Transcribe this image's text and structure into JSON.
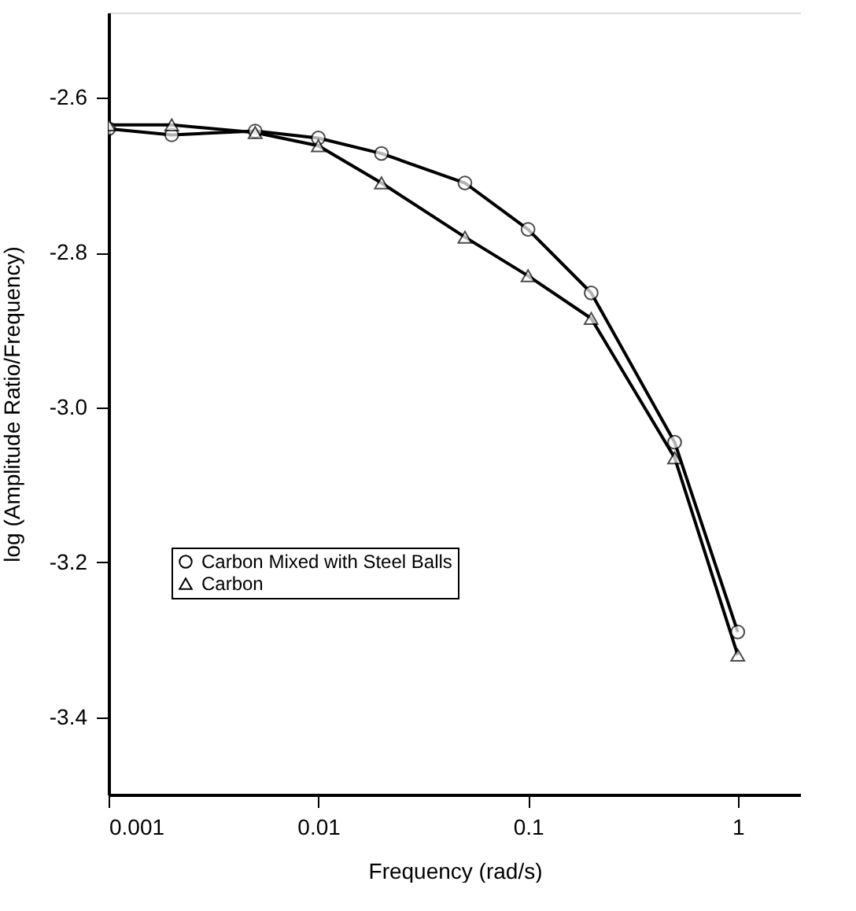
{
  "chart_data": {
    "type": "line",
    "xlabel": "Frequency (rad/s)",
    "ylabel": "log (Amplitude Ratio/Frequency)",
    "log": "x",
    "xlim": [
      0.001,
      2
    ],
    "xticks": [
      0.001,
      0.01,
      0.1,
      1
    ],
    "ylim": [
      -3.5,
      -2.49
    ],
    "yticks": [
      {
        "value": -2.6,
        "label": "-2.6"
      },
      {
        "value": -2.8,
        "label": "-2.8"
      },
      {
        "value": -3.0,
        "label": "-3.0"
      },
      {
        "value": -3.2,
        "label": "-3.2"
      },
      {
        "value": -3.4,
        "label": "-3.4"
      }
    ],
    "grid": false,
    "legend": "left",
    "line_style": "solid",
    "x": [
      0.001,
      0.002,
      0.005,
      0.01,
      0.02,
      0.05,
      0.1,
      0.2,
      0.5,
      1
    ],
    "series": [
      {
        "name": "Carbon Mixed with Steel Balls",
        "color": "#000000",
        "marker": "circle",
        "values": [
          -2.64,
          -2.648,
          -2.643,
          -2.652,
          -2.672,
          -2.71,
          -2.77,
          -2.852,
          -3.045,
          -3.29
        ]
      },
      {
        "name": "Carbon",
        "color": "#000000",
        "marker": "triangle",
        "values": [
          -2.635,
          -2.635,
          -2.645,
          -2.662,
          -2.71,
          -2.78,
          -2.83,
          -2.885,
          -3.065,
          -3.32
        ]
      }
    ]
  }
}
